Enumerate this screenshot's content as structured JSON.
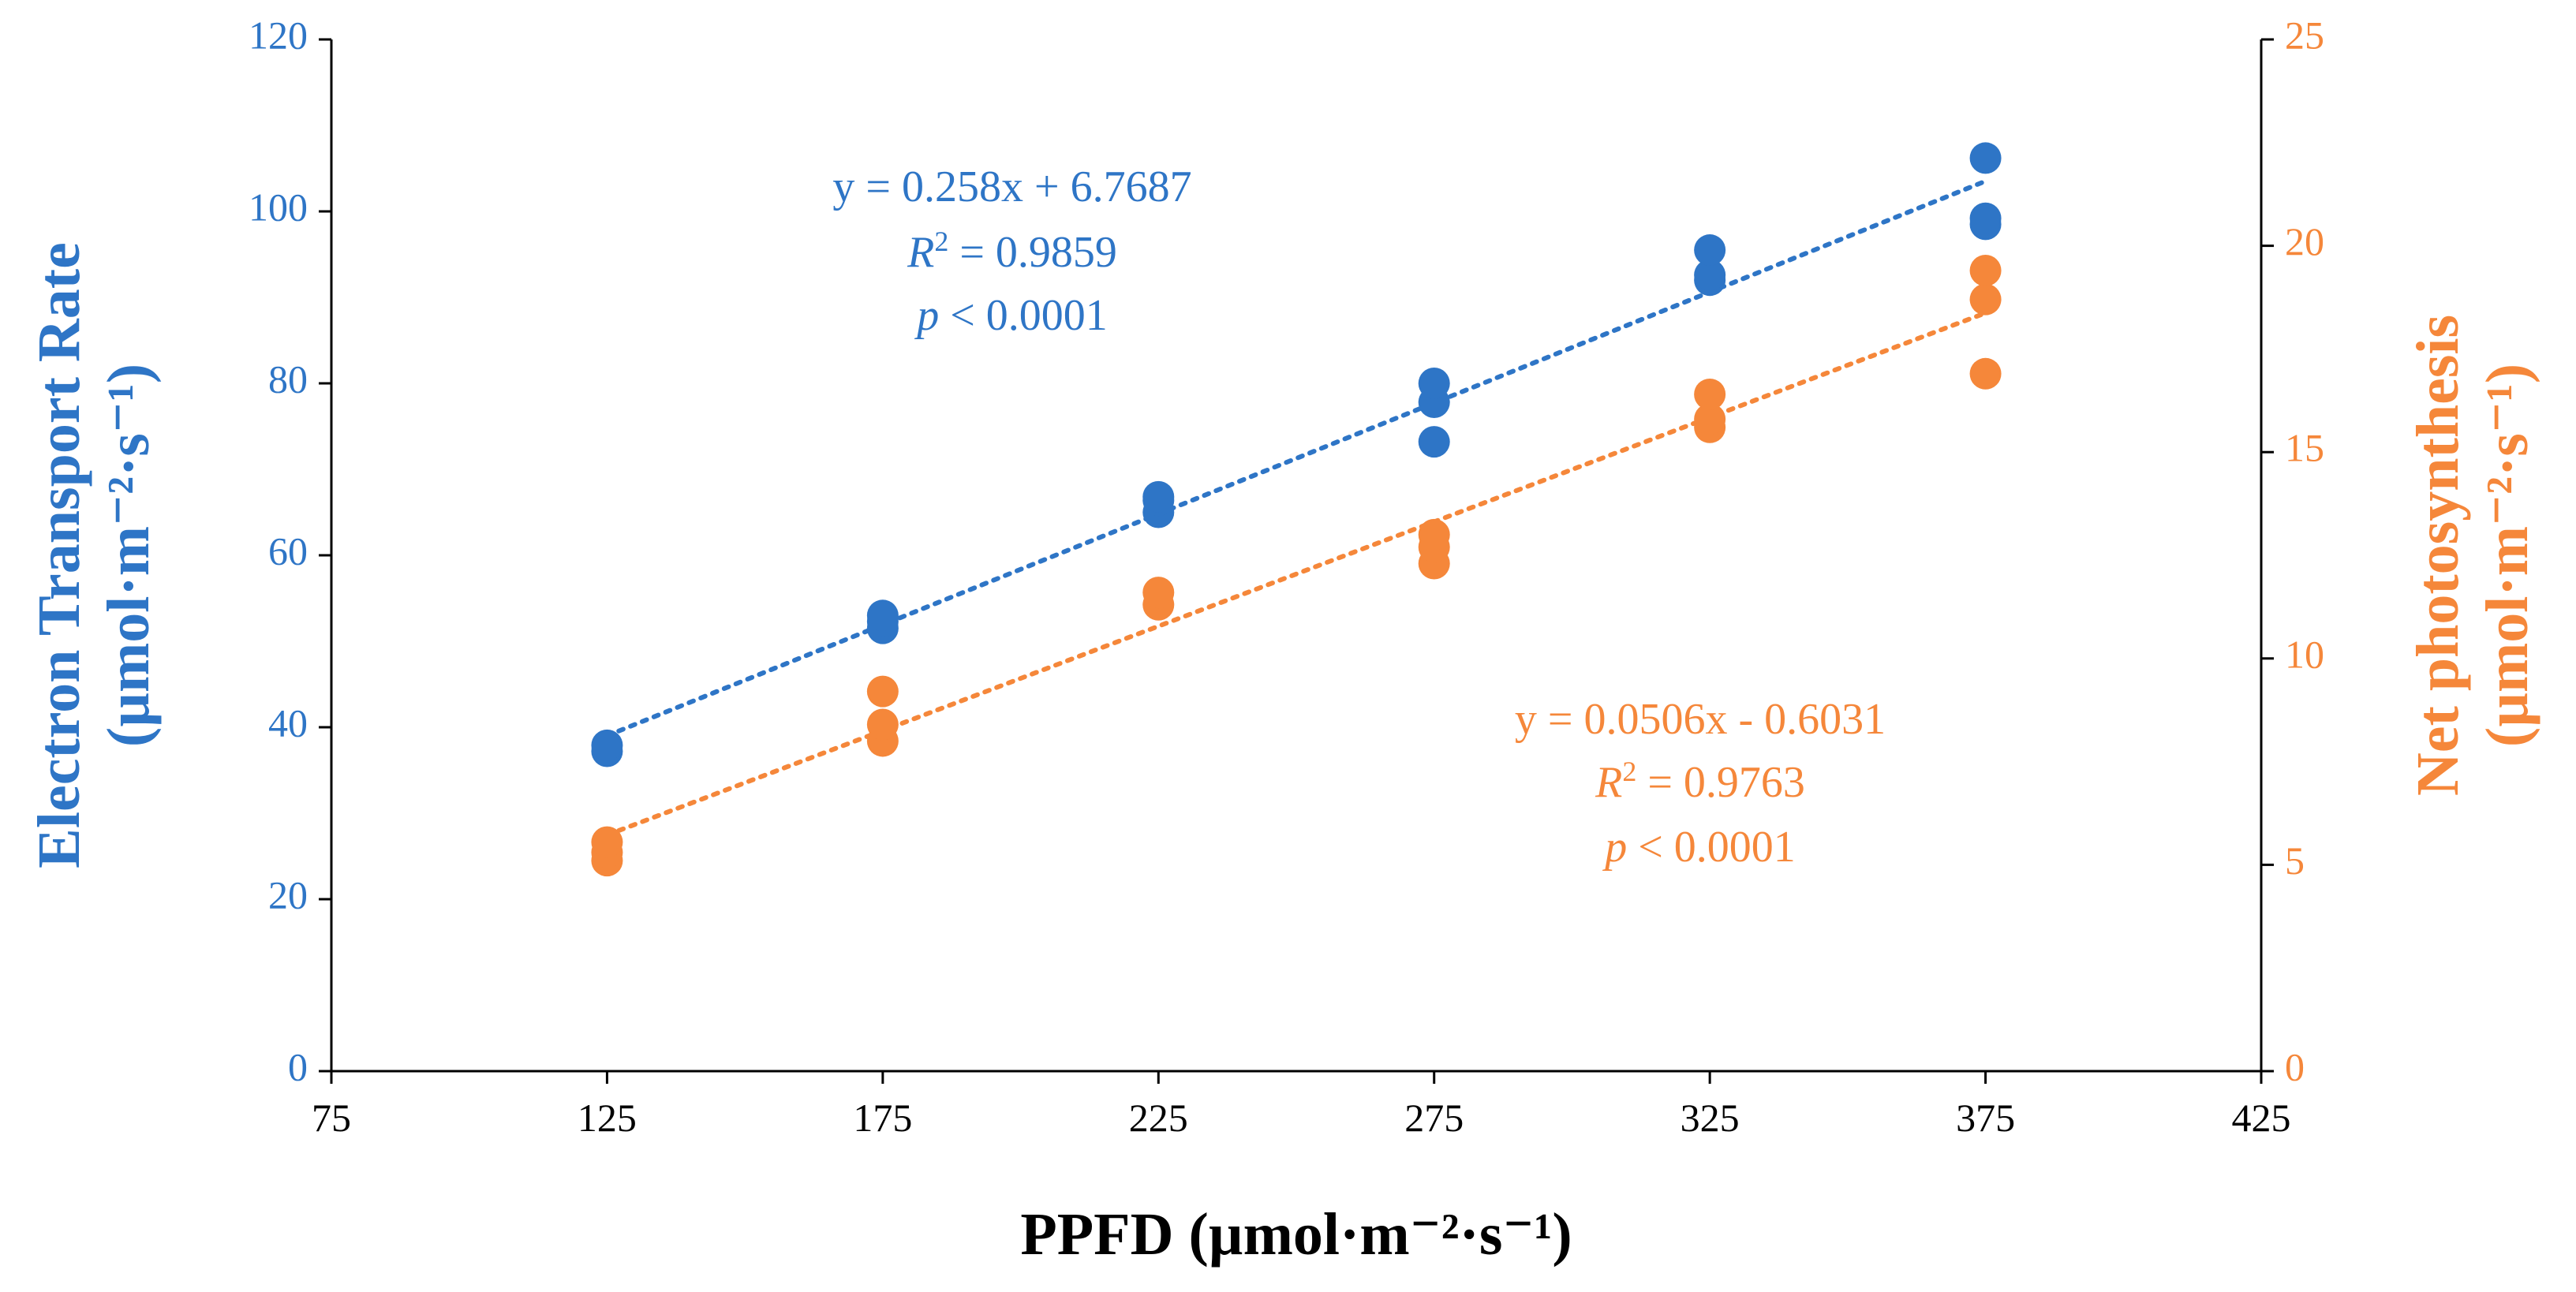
{
  "chart_data": {
    "type": "scatter",
    "xlabel": "PPFD (µmol·m⁻²·s⁻¹)",
    "ylabel_left": [
      "Electron Transport Rate",
      "(µmol·m⁻²·s⁻¹)"
    ],
    "ylabel_right": [
      "Net photosynthesis",
      "(µmol·m⁻²·s⁻¹)"
    ],
    "xlim": [
      75,
      425
    ],
    "xticks": [
      "75",
      "125",
      "175",
      "225",
      "275",
      "325",
      "375",
      "425"
    ],
    "ylim_left": [
      0,
      120
    ],
    "yticks_left": [
      "0",
      "20",
      "40",
      "60",
      "80",
      "100",
      "120"
    ],
    "ylim_right": [
      0,
      25
    ],
    "yticks_right": [
      "0",
      "5",
      "10",
      "15",
      "20",
      "25"
    ],
    "grid": false,
    "series": [
      {
        "name": "Electron Transport Rate",
        "axis": "left",
        "color": "#2E75C6",
        "points": [
          [
            125,
            37.2
          ],
          [
            125,
            37.9
          ],
          [
            175,
            51.5
          ],
          [
            175,
            52.3
          ],
          [
            175,
            53.0
          ],
          [
            225,
            65.0
          ],
          [
            225,
            66.4
          ],
          [
            225,
            66.8
          ],
          [
            275,
            73.2
          ],
          [
            275,
            77.8
          ],
          [
            275,
            80.0
          ],
          [
            325,
            92.0
          ],
          [
            325,
            92.6
          ],
          [
            325,
            95.5
          ],
          [
            375,
            98.5
          ],
          [
            375,
            99.2
          ],
          [
            375,
            106.2
          ]
        ],
        "trendline": {
          "slope": 0.258,
          "intercept": 6.7687
        },
        "equation": "y = 0.258x + 6.7687",
        "r2_label": "R",
        "r2_sup": "2",
        "r2_value": " = 0.9859",
        "p_label": "p",
        "p_value": " < 0.0001"
      },
      {
        "name": "Net photosynthesis",
        "axis": "right",
        "color": "#F5873A",
        "points": [
          [
            125,
            5.1
          ],
          [
            125,
            5.3
          ],
          [
            125,
            5.55
          ],
          [
            175,
            8.0
          ],
          [
            175,
            8.4
          ],
          [
            175,
            9.2
          ],
          [
            225,
            11.3
          ],
          [
            225,
            11.6
          ],
          [
            275,
            12.3
          ],
          [
            275,
            12.7
          ],
          [
            275,
            13.0
          ],
          [
            325,
            15.6
          ],
          [
            325,
            15.8
          ],
          [
            325,
            16.4
          ],
          [
            375,
            16.9
          ],
          [
            375,
            18.7
          ],
          [
            375,
            19.4
          ]
        ],
        "trendline": {
          "slope": 0.0506,
          "intercept": -0.6031
        },
        "equation": "y = 0.0506x - 0.6031",
        "r2_label": "R",
        "r2_sup": "2",
        "r2_value": " = 0.9763",
        "p_label": "p",
        "p_value": " < 0.0001"
      }
    ]
  }
}
